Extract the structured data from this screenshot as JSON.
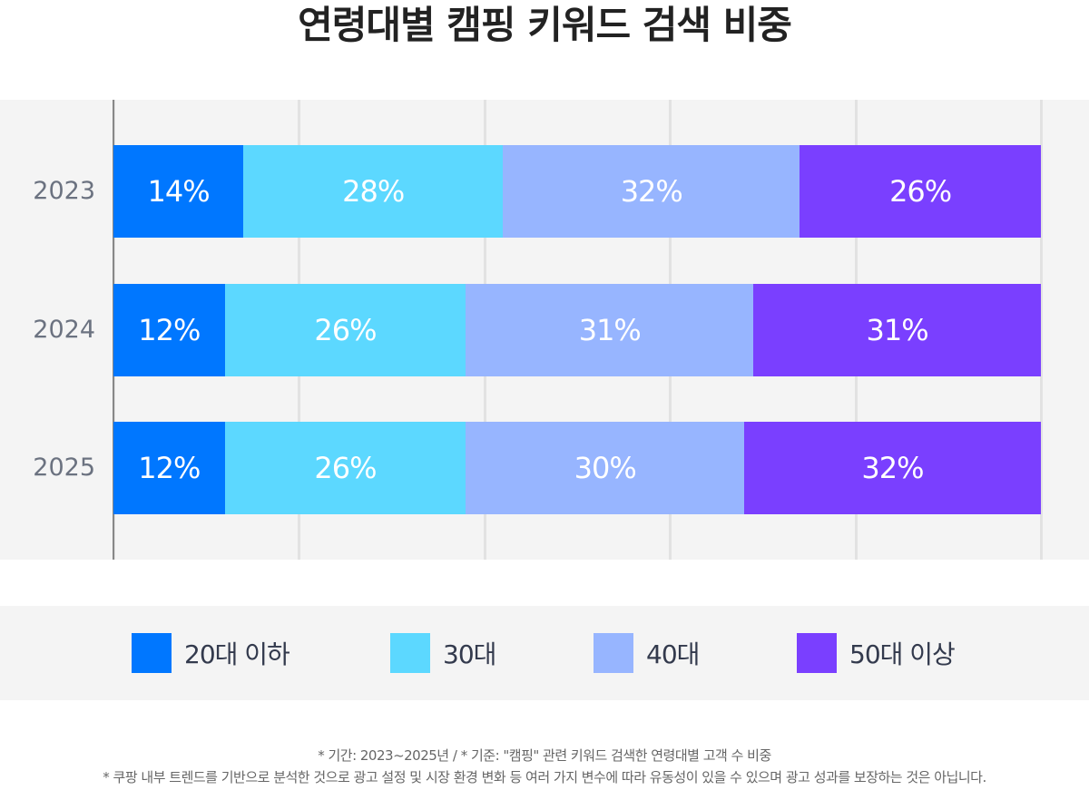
{
  "chart_data": {
    "type": "bar",
    "orientation": "horizontal-stacked",
    "title": "연령대별 캠핑 키워드 검색 비중",
    "categories": [
      "2023",
      "2024",
      "2025"
    ],
    "series": [
      {
        "name": "20대 이하",
        "color": "#0077ff",
        "values": [
          14,
          12,
          12
        ]
      },
      {
        "name": "30대",
        "color": "#5cd8ff",
        "values": [
          28,
          26,
          26
        ]
      },
      {
        "name": "40대",
        "color": "#97b5ff",
        "values": [
          32,
          31,
          30
        ]
      },
      {
        "name": "50대 이상",
        "color": "#7a3fff",
        "values": [
          26,
          31,
          32
        ]
      }
    ],
    "xlim": [
      0,
      100
    ],
    "grid": true,
    "legend": "bottom",
    "unit": "%"
  },
  "notes": [
    "* 기간: 2023~2025년 / * 기준: \"캠핑\" 관련 키워드 검색한 연령대별 고객 수 비중",
    "* 쿠팡 내부 트렌드를 기반으로 분석한 것으로 광고 설정 및 시장 환경 변화 등 여러 가지 변수에 따라 유동성이 있을 수 있으며 광고 성과를 보장하는 것은 아닙니다."
  ]
}
